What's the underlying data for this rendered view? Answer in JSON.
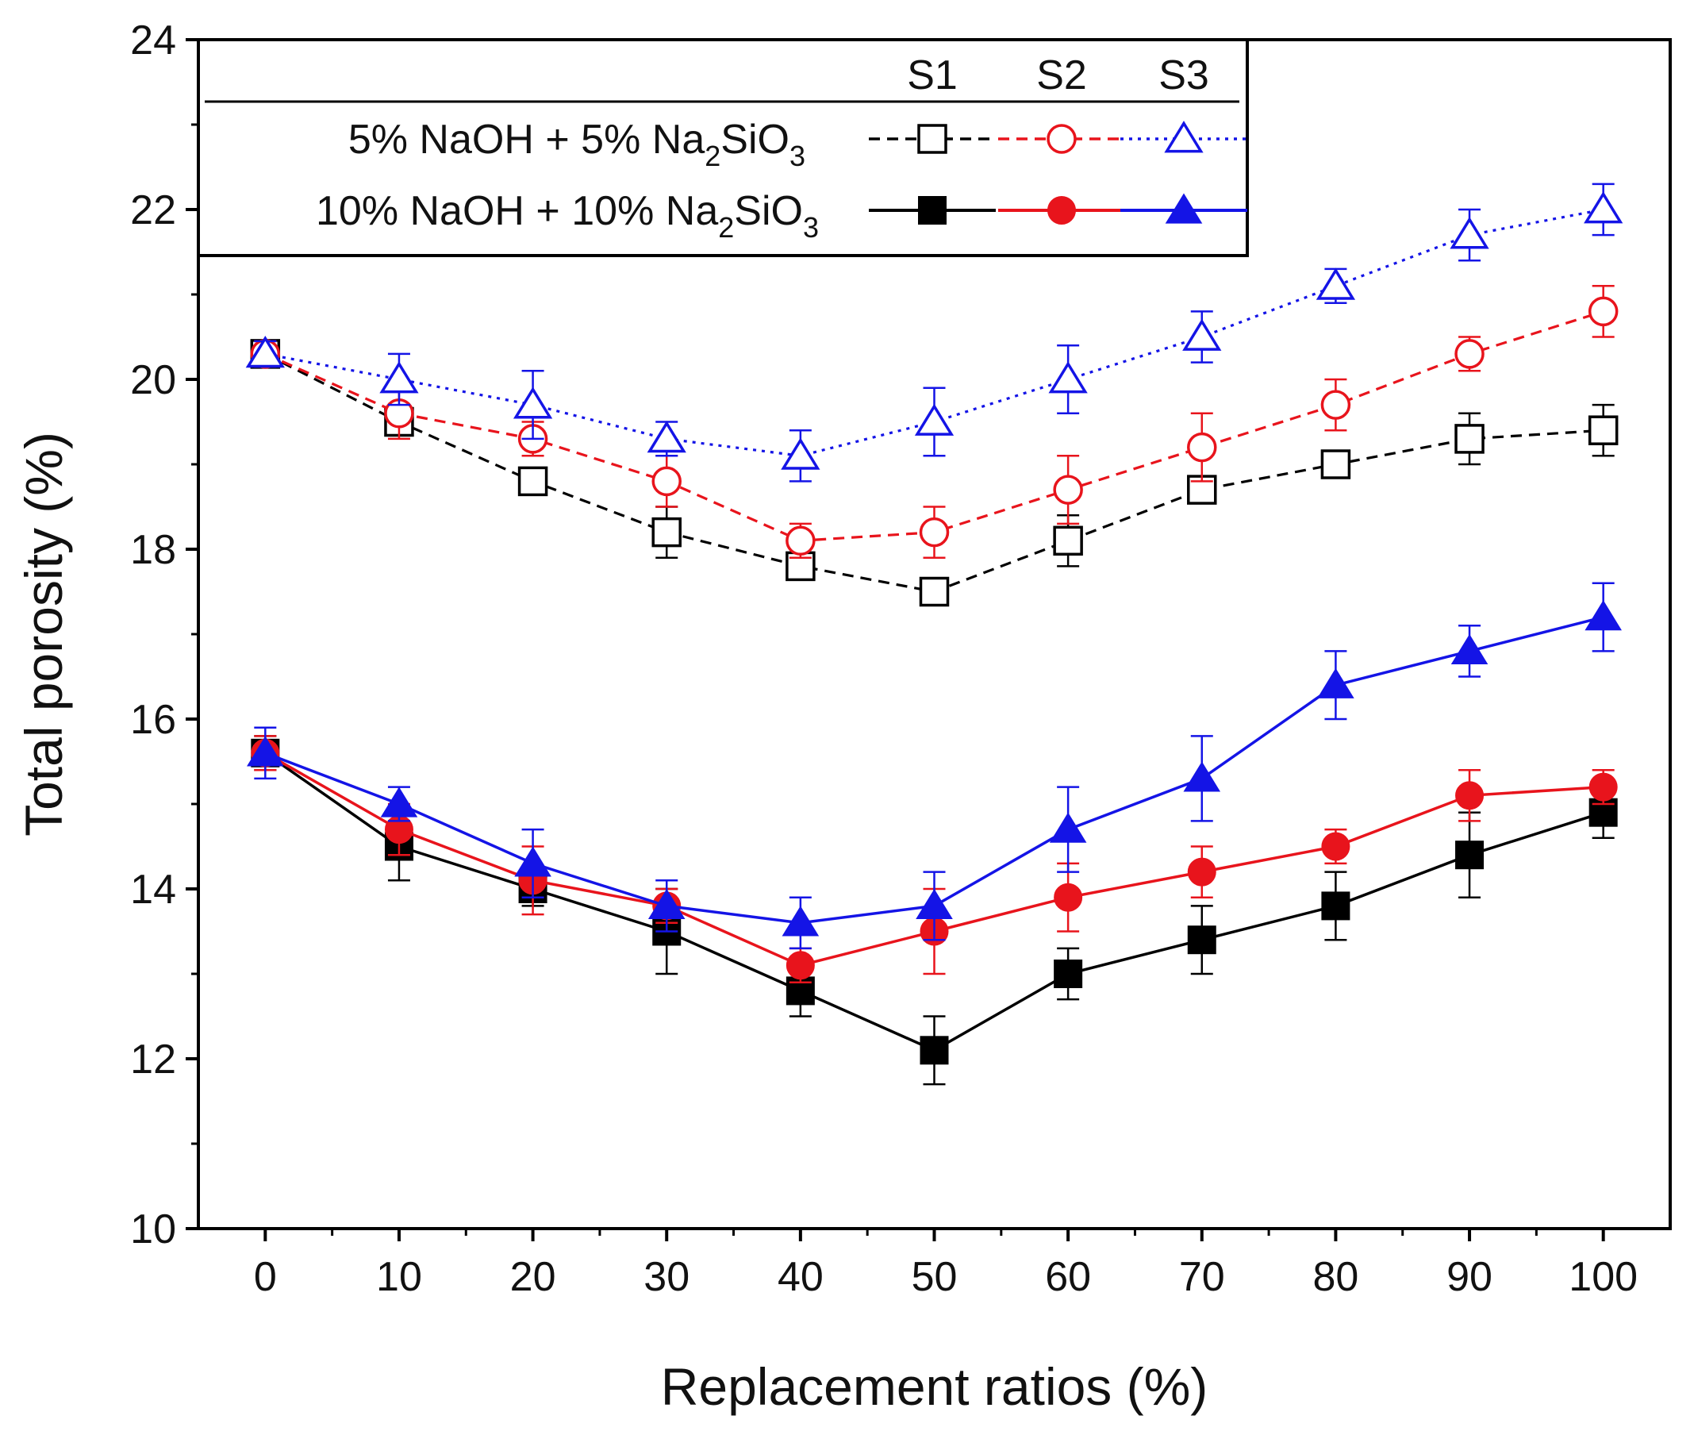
{
  "chart_data": {
    "type": "line",
    "title": "",
    "xlabel": "Replacement ratios (%)",
    "ylabel": "Total porosity (%)",
    "xlim": [
      -5,
      105
    ],
    "ylim": [
      10,
      24
    ],
    "x": [
      0,
      10,
      20,
      30,
      40,
      50,
      60,
      70,
      80,
      90,
      100
    ],
    "xticks": [
      "0",
      "10",
      "20",
      "30",
      "40",
      "50",
      "60",
      "70",
      "80",
      "90",
      "100"
    ],
    "yticks": [
      "10",
      "12",
      "14",
      "16",
      "18",
      "20",
      "22",
      "24"
    ],
    "grid": false,
    "legend": {
      "placement": "top-left",
      "columns": [
        "S1",
        "S2",
        "S3"
      ],
      "rows": [
        {
          "prefix": "5% NaOH +  5% Na",
          "sub1": "2",
          "mid": "SiO",
          "sub2": "3"
        },
        {
          "prefix": "10% NaOH + 10% Na",
          "sub1": "2",
          "mid": "SiO",
          "sub2": "3"
        }
      ]
    },
    "series": [
      {
        "name": "S1 - 5% NaOH + 5% Na2SiO3",
        "color": "#000000",
        "marker": "square",
        "filled": false,
        "line": "dashed",
        "values": [
          20.3,
          19.5,
          18.8,
          18.2,
          17.8,
          17.5,
          18.1,
          18.7,
          19.0,
          19.3,
          19.4
        ],
        "errors": [
          0.15,
          0.15,
          0.15,
          0.3,
          0.1,
          0.15,
          0.3,
          0.15,
          0.15,
          0.3,
          0.3
        ]
      },
      {
        "name": "S2 - 5% NaOH + 5% Na2SiO3",
        "color": "#e8141c",
        "marker": "circle",
        "filled": false,
        "line": "dashed",
        "values": [
          20.3,
          19.6,
          19.3,
          18.8,
          18.1,
          18.2,
          18.7,
          19.2,
          19.7,
          20.3,
          20.8
        ],
        "errors": [
          0.15,
          0.3,
          0.2,
          0.3,
          0.2,
          0.3,
          0.4,
          0.4,
          0.3,
          0.2,
          0.3
        ]
      },
      {
        "name": "S3 - 5% NaOH + 5% Na2SiO3",
        "color": "#1414e6",
        "marker": "triangle",
        "filled": false,
        "line": "dotted",
        "values": [
          20.3,
          20.0,
          19.7,
          19.3,
          19.1,
          19.5,
          20.0,
          20.5,
          21.1,
          21.7,
          22.0
        ],
        "errors": [
          0.15,
          0.3,
          0.4,
          0.2,
          0.3,
          0.4,
          0.4,
          0.3,
          0.2,
          0.3,
          0.3
        ]
      },
      {
        "name": "S1 - 10% NaOH + 10% Na2SiO3",
        "color": "#000000",
        "marker": "square",
        "filled": true,
        "line": "solid",
        "values": [
          15.6,
          14.5,
          14.0,
          13.5,
          12.8,
          12.1,
          13.0,
          13.4,
          13.8,
          14.4,
          14.9
        ],
        "errors": [
          0.2,
          0.4,
          0.2,
          0.5,
          0.3,
          0.4,
          0.3,
          0.4,
          0.4,
          0.5,
          0.3
        ]
      },
      {
        "name": "S2 - 10% NaOH + 10% Na2SiO3",
        "color": "#e8141c",
        "marker": "circle",
        "filled": true,
        "line": "solid",
        "values": [
          15.6,
          14.7,
          14.1,
          13.8,
          13.1,
          13.5,
          13.9,
          14.2,
          14.5,
          15.1,
          15.2
        ],
        "errors": [
          0.2,
          0.3,
          0.4,
          0.2,
          0.2,
          0.5,
          0.4,
          0.3,
          0.2,
          0.3,
          0.2
        ]
      },
      {
        "name": "S3 - 10% NaOH + 10% Na2SiO3",
        "color": "#1414e6",
        "marker": "triangle",
        "filled": true,
        "line": "solid",
        "values": [
          15.6,
          15.0,
          14.3,
          13.8,
          13.6,
          13.8,
          14.7,
          15.3,
          16.4,
          16.8,
          17.2
        ],
        "errors": [
          0.3,
          0.2,
          0.4,
          0.3,
          0.3,
          0.4,
          0.5,
          0.5,
          0.4,
          0.3,
          0.4
        ]
      }
    ]
  }
}
